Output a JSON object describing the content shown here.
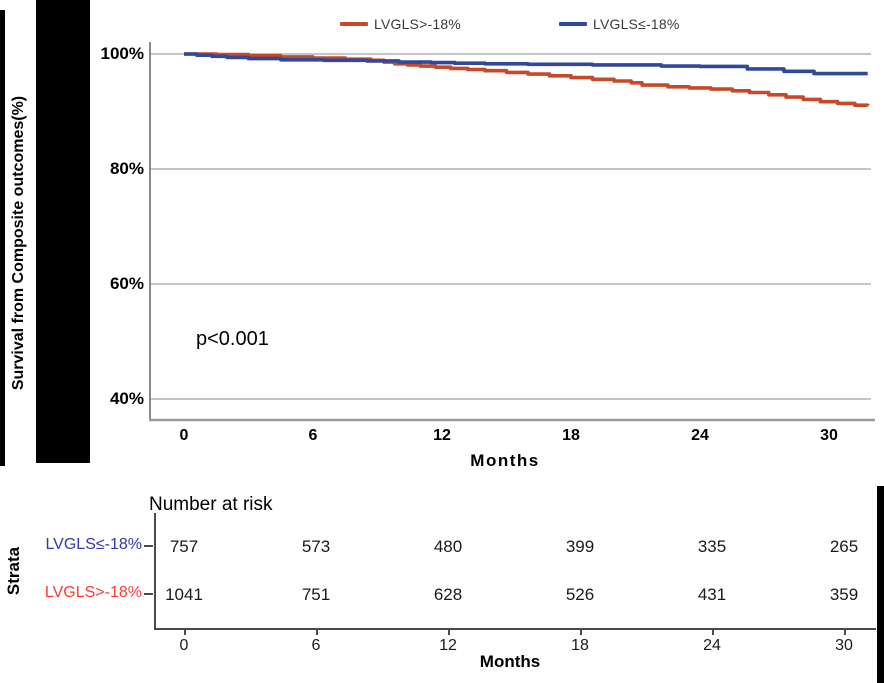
{
  "figure": {
    "y_axis_title": "Survival from Composite outcomes(%)",
    "p_value": "p<0.001",
    "months_label_main": "Months",
    "months_label_risk": "Months",
    "legend": {
      "items": [
        {
          "label": "LVGLS>-18%",
          "color": "#C7492B"
        },
        {
          "label": "LVGLS≤-18%",
          "color": "#30499B"
        }
      ]
    }
  },
  "chart_data": {
    "type": "line",
    "subtype": "kaplan-meier-step",
    "title": "",
    "xlabel": "Months",
    "ylabel": "Survival from Composite outcomes(%)",
    "x_ticks": [
      0,
      6,
      12,
      18,
      24,
      30
    ],
    "y_ticks": [
      {
        "label": "100%",
        "value": 100
      },
      {
        "label": "80%",
        "value": 80
      },
      {
        "label": "60%",
        "value": 60
      },
      {
        "label": "40%",
        "value": 40
      }
    ],
    "xlim": [
      0,
      31.8
    ],
    "ylim": [
      36,
      103
    ],
    "grid": "horizontal",
    "legend_position": "top",
    "annotation": "p<0.001",
    "series": [
      {
        "name": "LVGLS>-18%",
        "color": "#C7492B",
        "points": [
          [
            0,
            100
          ],
          [
            1.5,
            99.9
          ],
          [
            3,
            99.7
          ],
          [
            4.5,
            99.5
          ],
          [
            6,
            99.3
          ],
          [
            7.5,
            99.1
          ],
          [
            8.7,
            98.9
          ],
          [
            9.3,
            98.6
          ],
          [
            9.8,
            98.3
          ],
          [
            10.4,
            98.1
          ],
          [
            11,
            97.9
          ],
          [
            11.7,
            97.7
          ],
          [
            12.4,
            97.5
          ],
          [
            13.2,
            97.3
          ],
          [
            14,
            97.1
          ],
          [
            15,
            96.8
          ],
          [
            16,
            96.5
          ],
          [
            17,
            96.2
          ],
          [
            18,
            95.9
          ],
          [
            19,
            95.6
          ],
          [
            20,
            95.3
          ],
          [
            20.8,
            95.0
          ],
          [
            21.3,
            94.6
          ],
          [
            22.5,
            94.3
          ],
          [
            23.5,
            94.1
          ],
          [
            24.5,
            93.9
          ],
          [
            25.5,
            93.6
          ],
          [
            26.3,
            93.3
          ],
          [
            27.2,
            92.9
          ],
          [
            28,
            92.5
          ],
          [
            28.8,
            92.1
          ],
          [
            29.6,
            91.7
          ],
          [
            30.4,
            91.4
          ],
          [
            31.2,
            91.1
          ],
          [
            31.8,
            91.0
          ]
        ]
      },
      {
        "name": "LVGLS≤-18%",
        "color": "#30499B",
        "points": [
          [
            0,
            100
          ],
          [
            0.6,
            99.8
          ],
          [
            1.3,
            99.6
          ],
          [
            2,
            99.4
          ],
          [
            3,
            99.2
          ],
          [
            4.5,
            99.0
          ],
          [
            6.5,
            98.9
          ],
          [
            8.5,
            98.8
          ],
          [
            10,
            98.6
          ],
          [
            11.5,
            98.5
          ],
          [
            12.6,
            98.4
          ],
          [
            14,
            98.3
          ],
          [
            16,
            98.2
          ],
          [
            19,
            98.1
          ],
          [
            22.2,
            97.9
          ],
          [
            24,
            97.85
          ],
          [
            26.2,
            97.4
          ],
          [
            27.9,
            97.0
          ],
          [
            29.3,
            96.6
          ],
          [
            31.8,
            96.6
          ]
        ]
      }
    ]
  },
  "risk_table": {
    "heading": "Number at risk",
    "axis_label": "Strata",
    "x_ticks": [
      0,
      6,
      12,
      18,
      24,
      30
    ],
    "x_axis_title": "Months",
    "rows": [
      {
        "label": "LVGLS≤-18%",
        "color": "#3636AE",
        "values": [
          757,
          573,
          480,
          399,
          335,
          265
        ]
      },
      {
        "label": "LVGLS>-18%",
        "color": "#FA3C3C",
        "values": [
          1041,
          751,
          628,
          526,
          431,
          359
        ]
      }
    ]
  }
}
